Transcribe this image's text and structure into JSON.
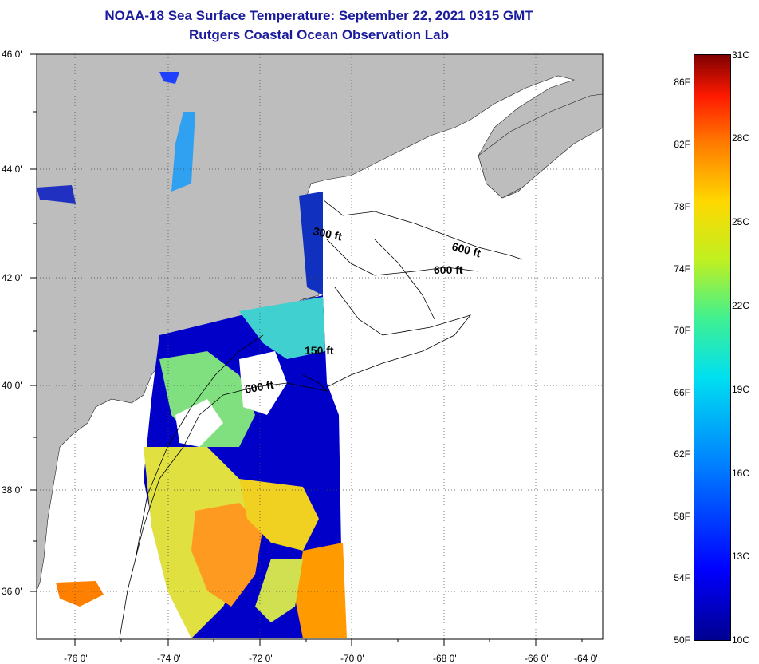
{
  "title": "NOAA-18 Sea Surface Temperature:  September 22, 2021 0315 GMT",
  "subtitle": "Rutgers Coastal Ocean Observation Lab",
  "map": {
    "lat_labels": [
      "46 0'",
      "44 0'",
      "42 0'",
      "40 0'",
      "38 0'",
      "36 0'"
    ],
    "lon_labels": [
      "-76 0'",
      "-74 0'",
      "-72 0'",
      "-70 0'",
      "-68 0'",
      "-66 0'",
      "-64 0'"
    ],
    "contour_labels": [
      "300 ft",
      "600 ft",
      "600 ft",
      "150 ft",
      "600 ft"
    ],
    "land_color": "#bdbdbd"
  },
  "colorbar": {
    "f_labels": [
      "86F",
      "82F",
      "78F",
      "74F",
      "70F",
      "66F",
      "62F",
      "58F",
      "54F",
      "50F"
    ],
    "c_labels": [
      "31C",
      "28C",
      "25C",
      "22C",
      "19C",
      "16C",
      "13C",
      "10C"
    ]
  }
}
